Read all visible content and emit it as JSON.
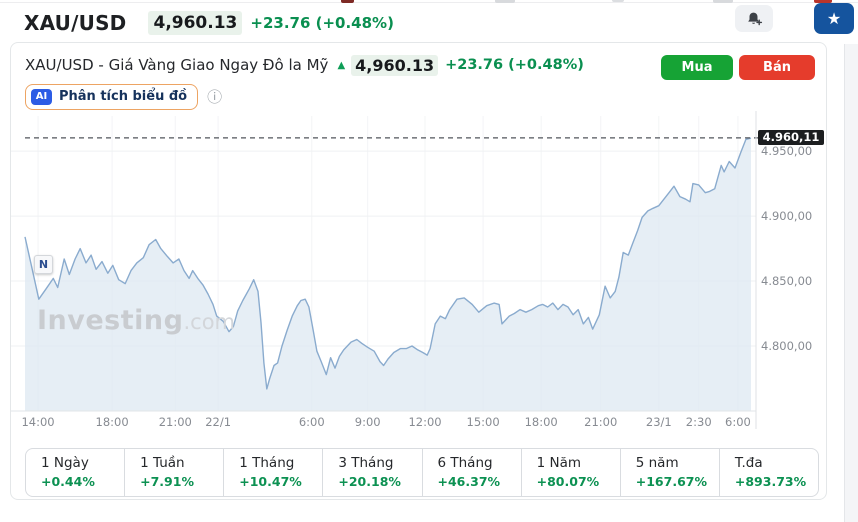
{
  "header": {
    "symbol": "XAU/USD",
    "price": "4,960.13",
    "change": "+23.76 (+0.48%)"
  },
  "instrument": {
    "title": "XAU/USD - Giá Vàng Giao Ngay Đô la Mỹ",
    "price": "4,960.13",
    "change": "+23.76 (+0.48%)",
    "buy_label": "Mua",
    "sell_label": "Bán"
  },
  "ai_bar": {
    "badge": "AI",
    "label": "Phân tích biểu đồ"
  },
  "icons": {
    "star": "★",
    "info": "ⓘ",
    "arrow_up": "▲"
  },
  "watermark": {
    "bold": "Investing",
    "light": ".com"
  },
  "news_marker": "N",
  "chart_data": {
    "type": "area",
    "title": "XAU/USD spot gold price intraday",
    "current_price": 4960.11,
    "current_price_label": "4.960,11",
    "ylim": [
      4750,
      4977
    ],
    "grid": true,
    "y_ticks": [
      {
        "label": "4.950,00",
        "value": 4950
      },
      {
        "label": "4.900,00",
        "value": 4900
      },
      {
        "label": "4.850,00",
        "value": 4850
      },
      {
        "label": "4.800,00",
        "value": 4800
      }
    ],
    "x_ticks": [
      {
        "label": "14:00",
        "pos": 0.018
      },
      {
        "label": "18:00",
        "pos": 0.12
      },
      {
        "label": "21:00",
        "pos": 0.207
      },
      {
        "label": "22/1",
        "pos": 0.266
      },
      {
        "label": "6:00",
        "pos": 0.395
      },
      {
        "label": "9:00",
        "pos": 0.472
      },
      {
        "label": "12:00",
        "pos": 0.551
      },
      {
        "label": "15:00",
        "pos": 0.631
      },
      {
        "label": "18:00",
        "pos": 0.711
      },
      {
        "label": "21:00",
        "pos": 0.793
      },
      {
        "label": "23/1",
        "pos": 0.873
      },
      {
        "label": "2:30",
        "pos": 0.928
      },
      {
        "label": "6:00",
        "pos": 0.982
      }
    ],
    "points": [
      [
        0.0,
        4884
      ],
      [
        0.008,
        4864
      ],
      [
        0.019,
        4836
      ],
      [
        0.029,
        4844
      ],
      [
        0.039,
        4852
      ],
      [
        0.045,
        4845
      ],
      [
        0.054,
        4867
      ],
      [
        0.061,
        4855
      ],
      [
        0.069,
        4867
      ],
      [
        0.076,
        4875
      ],
      [
        0.084,
        4864
      ],
      [
        0.091,
        4870
      ],
      [
        0.098,
        4859
      ],
      [
        0.106,
        4865
      ],
      [
        0.114,
        4856
      ],
      [
        0.121,
        4862
      ],
      [
        0.129,
        4851
      ],
      [
        0.138,
        4848
      ],
      [
        0.146,
        4858
      ],
      [
        0.154,
        4864
      ],
      [
        0.163,
        4868
      ],
      [
        0.171,
        4878
      ],
      [
        0.18,
        4882
      ],
      [
        0.187,
        4875
      ],
      [
        0.196,
        4869
      ],
      [
        0.204,
        4864
      ],
      [
        0.212,
        4867
      ],
      [
        0.219,
        4858
      ],
      [
        0.226,
        4852
      ],
      [
        0.231,
        4858
      ],
      [
        0.238,
        4852
      ],
      [
        0.245,
        4847
      ],
      [
        0.252,
        4840
      ],
      [
        0.259,
        4832
      ],
      [
        0.264,
        4823
      ],
      [
        0.273,
        4819
      ],
      [
        0.281,
        4811
      ],
      [
        0.287,
        4815
      ],
      [
        0.293,
        4827
      ],
      [
        0.3,
        4835
      ],
      [
        0.309,
        4844
      ],
      [
        0.315,
        4851
      ],
      [
        0.321,
        4842
      ],
      [
        0.325,
        4818
      ],
      [
        0.329,
        4787
      ],
      [
        0.333,
        4767
      ],
      [
        0.337,
        4775
      ],
      [
        0.343,
        4785
      ],
      [
        0.348,
        4787
      ],
      [
        0.354,
        4800
      ],
      [
        0.361,
        4812
      ],
      [
        0.368,
        4823
      ],
      [
        0.375,
        4831
      ],
      [
        0.38,
        4835
      ],
      [
        0.386,
        4836
      ],
      [
        0.391,
        4830
      ],
      [
        0.397,
        4812
      ],
      [
        0.402,
        4796
      ],
      [
        0.408,
        4788
      ],
      [
        0.415,
        4778
      ],
      [
        0.421,
        4791
      ],
      [
        0.427,
        4783
      ],
      [
        0.433,
        4792
      ],
      [
        0.439,
        4797
      ],
      [
        0.449,
        4803
      ],
      [
        0.457,
        4805
      ],
      [
        0.464,
        4802
      ],
      [
        0.472,
        4799
      ],
      [
        0.481,
        4796
      ],
      [
        0.489,
        4788
      ],
      [
        0.494,
        4785
      ],
      [
        0.5,
        4790
      ],
      [
        0.508,
        4795
      ],
      [
        0.517,
        4798
      ],
      [
        0.525,
        4798
      ],
      [
        0.533,
        4800
      ],
      [
        0.541,
        4797
      ],
      [
        0.548,
        4795
      ],
      [
        0.554,
        4793
      ],
      [
        0.558,
        4798
      ],
      [
        0.565,
        4817
      ],
      [
        0.572,
        4823
      ],
      [
        0.579,
        4821
      ],
      [
        0.585,
        4828
      ],
      [
        0.595,
        4836
      ],
      [
        0.605,
        4837
      ],
      [
        0.616,
        4832
      ],
      [
        0.625,
        4826
      ],
      [
        0.636,
        4831
      ],
      [
        0.646,
        4833
      ],
      [
        0.653,
        4832
      ],
      [
        0.657,
        4817
      ],
      [
        0.667,
        4823
      ],
      [
        0.674,
        4825
      ],
      [
        0.682,
        4828
      ],
      [
        0.69,
        4826
      ],
      [
        0.698,
        4828
      ],
      [
        0.707,
        4831
      ],
      [
        0.713,
        4832
      ],
      [
        0.72,
        4830
      ],
      [
        0.727,
        4833
      ],
      [
        0.734,
        4828
      ],
      [
        0.741,
        4832
      ],
      [
        0.748,
        4830
      ],
      [
        0.755,
        4824
      ],
      [
        0.762,
        4828
      ],
      [
        0.769,
        4817
      ],
      [
        0.776,
        4822
      ],
      [
        0.782,
        4813
      ],
      [
        0.791,
        4824
      ],
      [
        0.799,
        4846
      ],
      [
        0.806,
        4837
      ],
      [
        0.813,
        4842
      ],
      [
        0.818,
        4853
      ],
      [
        0.824,
        4872
      ],
      [
        0.831,
        4870
      ],
      [
        0.837,
        4879
      ],
      [
        0.844,
        4889
      ],
      [
        0.85,
        4899
      ],
      [
        0.858,
        4904
      ],
      [
        0.865,
        4906
      ],
      [
        0.873,
        4908
      ],
      [
        0.88,
        4913
      ],
      [
        0.887,
        4918
      ],
      [
        0.894,
        4923
      ],
      [
        0.902,
        4915
      ],
      [
        0.91,
        4913
      ],
      [
        0.916,
        4911
      ],
      [
        0.92,
        4925
      ],
      [
        0.928,
        4924
      ],
      [
        0.937,
        4918
      ],
      [
        0.943,
        4919
      ],
      [
        0.95,
        4921
      ],
      [
        0.959,
        4939
      ],
      [
        0.963,
        4934
      ],
      [
        0.97,
        4942
      ],
      [
        0.978,
        4937
      ],
      [
        0.986,
        4949
      ],
      [
        0.993,
        4959
      ],
      [
        1.0,
        4960
      ]
    ]
  },
  "timeframes": [
    {
      "label": "1 Ngày",
      "change": "+0.44%"
    },
    {
      "label": "1 Tuần",
      "change": "+7.91%"
    },
    {
      "label": "1 Tháng",
      "change": "+10.47%"
    },
    {
      "label": "3 Tháng",
      "change": "+20.18%"
    },
    {
      "label": "6 Tháng",
      "change": "+46.37%"
    },
    {
      "label": "1 Năm",
      "change": "+80.07%"
    },
    {
      "label": "5 năm",
      "change": "+167.67%"
    },
    {
      "label": "T.đa",
      "change": "+893.73%"
    }
  ],
  "colors": {
    "accent_green": "#0a8f50",
    "buy_green": "#16a335",
    "sell_red": "#e53c2c",
    "star_blue": "#15549e",
    "ai_blue": "#2c5ce5",
    "line": "#8aabce",
    "fill": "#dde8f2",
    "price_badge_bg": "#1c1e20",
    "highlight_bg": "#e9f2eb"
  }
}
